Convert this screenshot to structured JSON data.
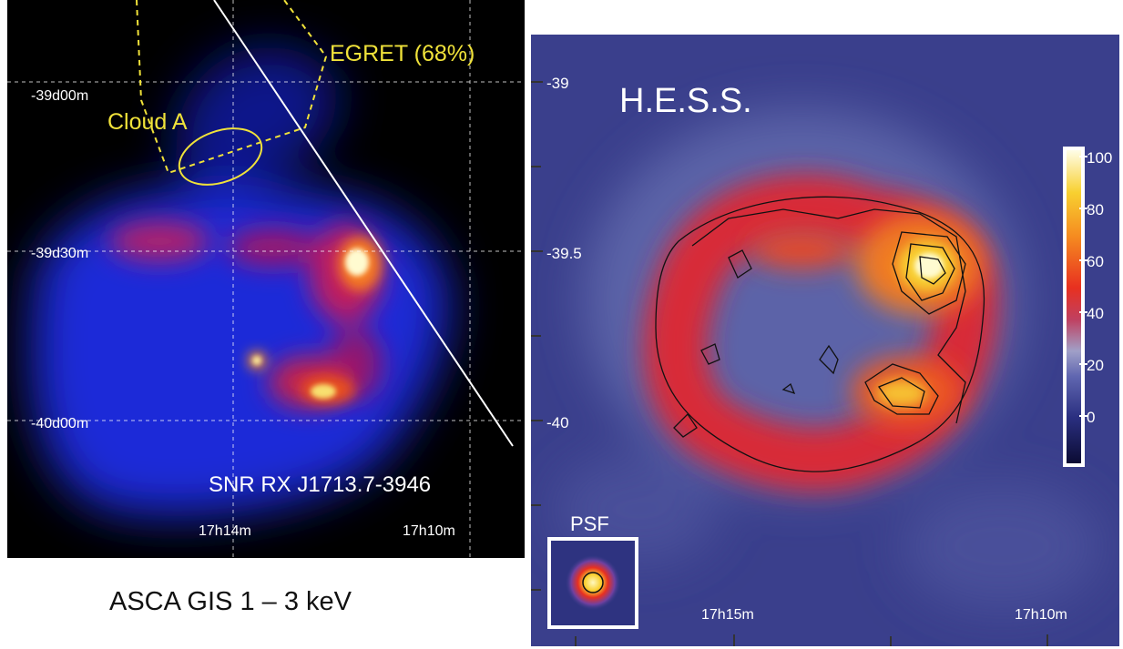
{
  "left_panel": {
    "labels": {
      "egret": "EGRET (68%)",
      "cloud": "Cloud A",
      "snr": "SNR RX J1713.7-3946"
    },
    "dec_ticks": [
      "-39d00m",
      "-39d30m",
      "-40d00m"
    ],
    "ra_ticks": [
      "17h14m",
      "17h10m"
    ],
    "caption": "ASCA GIS 1 – 3 keV",
    "colors": {
      "label_yellow": "#f0e23a",
      "background": "#000000"
    }
  },
  "right_panel": {
    "title": "H.E.S.S.",
    "dec_ticks": [
      "-39",
      "-39.5",
      "-40"
    ],
    "ra_ticks": [
      "17h15m",
      "17h10m"
    ],
    "psf_label": "PSF",
    "colorbar_ticks": [
      "100",
      "80",
      "60",
      "40",
      "20",
      "0"
    ],
    "colors": {
      "background": "#3a3f8c"
    }
  }
}
